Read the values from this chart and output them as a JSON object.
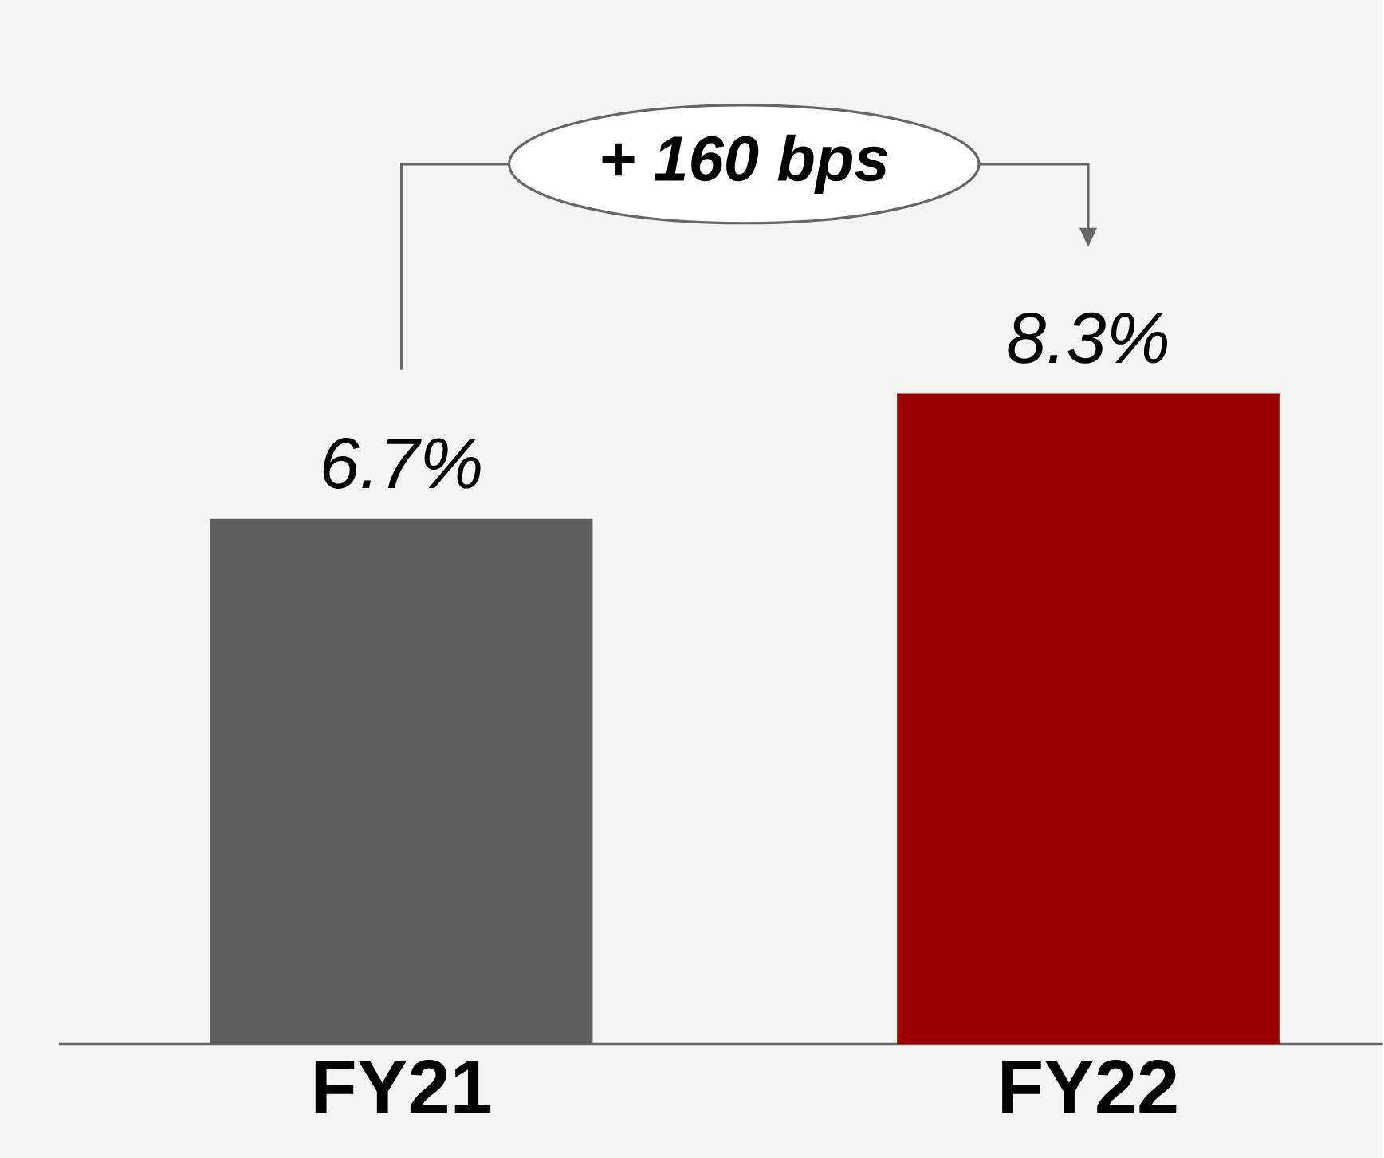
{
  "chart_data": {
    "type": "bar",
    "categories": [
      "FY21",
      "FY22"
    ],
    "values": [
      6.7,
      8.3
    ],
    "colors": [
      "#5f5f5f",
      "#9b0000"
    ],
    "value_labels": [
      "6.7%",
      "8.3%"
    ],
    "annotations": [
      "+ 160 bps"
    ]
  }
}
